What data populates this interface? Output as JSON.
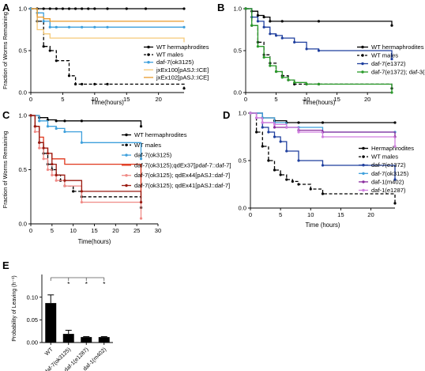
{
  "figure": "multi-panel survival and leaving probability figure",
  "chart_data": [
    {
      "panel": "A",
      "type": "line",
      "xlabel": "Time(hours)",
      "ylabel": "Fraction of Worms Remaining",
      "xlim": [
        0,
        24
      ],
      "ylim": [
        0,
        1.0
      ],
      "xticks": [
        0,
        5,
        10,
        15,
        20
      ],
      "yticks": [
        0,
        0.5,
        1.0
      ],
      "ytick_labels": [
        "0.0",
        "0.5",
        "1.0"
      ],
      "legend_position": "right",
      "series": [
        {
          "name": "WT hermaphrodites",
          "color": "#000000",
          "dash": "solid",
          "marker": "dot",
          "x": [
            0,
            1,
            2,
            3,
            4,
            5,
            6,
            7,
            8,
            9,
            10,
            12,
            15,
            18,
            24
          ],
          "y": [
            1,
            1,
            1,
            1,
            1,
            1,
            1,
            1,
            1,
            1,
            1,
            1,
            1,
            1,
            1
          ]
        },
        {
          "name": "WT males",
          "color": "#000000",
          "dash": "dashed",
          "marker": "dot",
          "x": [
            0,
            1,
            2,
            3,
            4,
            6,
            7,
            8,
            10,
            12,
            24
          ],
          "y": [
            1,
            0.85,
            0.55,
            0.5,
            0.38,
            0.2,
            0.1,
            0.1,
            0.1,
            0.1,
            0.05
          ]
        },
        {
          "name": "daf-7(ok3125)",
          "color": "#3ea0dc",
          "dash": "solid",
          "marker": "dot",
          "x": [
            0,
            1,
            2,
            3,
            4,
            6,
            8,
            10,
            12,
            24
          ],
          "y": [
            1,
            0.95,
            0.85,
            0.78,
            0.78,
            0.78,
            0.78,
            0.78,
            0.78,
            0.78
          ]
        },
        {
          "name": "jxEx100[pASJ::ICE]",
          "color": "#f5c978",
          "dash": "solid",
          "marker": "none",
          "x": [
            0,
            1,
            2,
            3,
            6,
            8,
            12,
            24
          ],
          "y": [
            1,
            0.75,
            0.7,
            0.65,
            0.65,
            0.65,
            0.65,
            0.6
          ]
        },
        {
          "name": "jxEx102[pASJ::ICE]",
          "color": "#e99a2c",
          "dash": "solid",
          "marker": "none",
          "x": [
            0,
            1,
            2,
            3,
            6,
            12,
            24
          ],
          "y": [
            1,
            0.9,
            0.88,
            0.85,
            0.85,
            0.85,
            0.85
          ]
        }
      ]
    },
    {
      "panel": "B",
      "type": "line",
      "xlabel": "Time(hours)",
      "ylabel": "",
      "xlim": [
        0,
        24
      ],
      "ylim": [
        0,
        1.0
      ],
      "xticks": [
        0,
        5,
        10,
        15,
        20
      ],
      "yticks": [
        0,
        0.5,
        1.0
      ],
      "ytick_labels": [
        "0.0",
        "0.5",
        "1.0"
      ],
      "legend_position": "right",
      "series": [
        {
          "name": "WT hermaphrodites",
          "color": "#000000",
          "dash": "solid",
          "marker": "dot",
          "x": [
            0,
            1,
            2,
            3,
            4,
            6,
            12,
            24
          ],
          "y": [
            1,
            0.97,
            0.92,
            0.9,
            0.85,
            0.85,
            0.85,
            0.8
          ]
        },
        {
          "name": "WT males",
          "color": "#000000",
          "dash": "dashed",
          "marker": "dot",
          "x": [
            0,
            1,
            2,
            3,
            4,
            5,
            6,
            7,
            8,
            10,
            12,
            24
          ],
          "y": [
            1,
            0.8,
            0.6,
            0.45,
            0.35,
            0.25,
            0.2,
            0.15,
            0.1,
            0.1,
            0.1,
            0.05
          ]
        },
        {
          "name": "daf-7(e1372)",
          "color": "#1f3f9e",
          "dash": "solid",
          "marker": "dot",
          "x": [
            0,
            1,
            2,
            3,
            4,
            5,
            6,
            8,
            10,
            12,
            24
          ],
          "y": [
            1,
            0.9,
            0.85,
            0.78,
            0.7,
            0.68,
            0.65,
            0.6,
            0.52,
            0.5,
            0.4
          ]
        },
        {
          "name": "daf-7(e1372); daf-3(e1376)",
          "color": "#2a9a2a",
          "dash": "solid",
          "marker": "dot",
          "x": [
            0,
            1,
            2,
            3,
            4,
            5,
            6,
            7,
            8,
            10,
            12,
            24
          ],
          "y": [
            1,
            0.8,
            0.55,
            0.42,
            0.32,
            0.25,
            0.18,
            0.15,
            0.12,
            0.1,
            0.1,
            0.0
          ]
        }
      ]
    },
    {
      "panel": "C",
      "type": "line",
      "xlabel": "Time(hours)",
      "ylabel": "Fraction of Worms Remaining",
      "xlim": [
        0,
        30
      ],
      "ylim": [
        0,
        1.0
      ],
      "xticks": [
        0,
        5,
        10,
        15,
        20,
        25,
        30
      ],
      "yticks": [
        0,
        0.5,
        1.0
      ],
      "ytick_labels": [
        "0.0",
        "0.5",
        "1.0"
      ],
      "legend_position": "right",
      "series": [
        {
          "name": "WT hermaphrodites",
          "color": "#000000",
          "dash": "solid",
          "marker": "dot",
          "x": [
            0,
            2,
            4,
            6,
            8,
            12,
            26
          ],
          "y": [
            1,
            0.98,
            0.96,
            0.95,
            0.95,
            0.95,
            0.9
          ]
        },
        {
          "name": "WT males",
          "color": "#000000",
          "dash": "dashed",
          "marker": "dot",
          "x": [
            0,
            1,
            2,
            3,
            4,
            5,
            6,
            7,
            8,
            10,
            12,
            26
          ],
          "y": [
            1,
            0.9,
            0.75,
            0.65,
            0.55,
            0.5,
            0.45,
            0.4,
            0.35,
            0.3,
            0.25,
            0.15
          ]
        },
        {
          "name": "daf-7(ok3125)",
          "color": "#3ea0dc",
          "dash": "solid",
          "marker": "dot",
          "x": [
            0,
            2,
            4,
            6,
            8,
            12,
            26
          ],
          "y": [
            1,
            0.95,
            0.9,
            0.88,
            0.85,
            0.75,
            0.6
          ]
        },
        {
          "name": "daf-7(ok3125);qdEx37[pdaf-7::daf-7]",
          "color": "#e0371c",
          "dash": "solid",
          "marker": "none",
          "x": [
            0,
            1,
            2,
            3,
            4,
            5,
            6,
            8,
            12,
            26
          ],
          "y": [
            1,
            0.9,
            0.8,
            0.7,
            0.65,
            0.6,
            0.6,
            0.55,
            0.55,
            0.25
          ]
        },
        {
          "name": "daf-7(ok3125); qdEx44[pASJ::daf-7]",
          "color": "#f08a86",
          "dash": "solid",
          "marker": "dot",
          "x": [
            0,
            1,
            2,
            3,
            4,
            5,
            6,
            8,
            12,
            26
          ],
          "y": [
            1,
            0.85,
            0.7,
            0.6,
            0.5,
            0.45,
            0.4,
            0.35,
            0.2,
            0.05
          ]
        },
        {
          "name": "daf-7(ok3125); qdEx41[pASJ::daf-7]",
          "color": "#9a1a10",
          "dash": "solid",
          "marker": "dot",
          "x": [
            0,
            1,
            2,
            3,
            4,
            5,
            6,
            8,
            12,
            26
          ],
          "y": [
            1,
            0.9,
            0.75,
            0.7,
            0.65,
            0.55,
            0.45,
            0.4,
            0.3,
            0.2
          ]
        }
      ]
    },
    {
      "panel": "D",
      "type": "line",
      "xlabel": "Time (hours)",
      "ylabel": "",
      "xlim": [
        0,
        24
      ],
      "ylim": [
        0,
        1.0
      ],
      "xticks": [
        0,
        5,
        10,
        15,
        20
      ],
      "yticks": [
        0,
        0.5,
        1.0
      ],
      "ytick_labels": [
        "0.0",
        "0.5",
        "1.0"
      ],
      "legend_position": "right",
      "series": [
        {
          "name": "Hermaphrodites",
          "color": "#000000",
          "dash": "solid",
          "marker": "dot",
          "x": [
            0,
            2,
            4,
            6,
            8,
            12,
            24
          ],
          "y": [
            1,
            0.95,
            0.92,
            0.9,
            0.9,
            0.9,
            0.9
          ]
        },
        {
          "name": "WT males",
          "color": "#000000",
          "dash": "dashed",
          "marker": "dot",
          "x": [
            0,
            1,
            2,
            3,
            4,
            5,
            6,
            7,
            8,
            10,
            12,
            24
          ],
          "y": [
            1,
            0.8,
            0.65,
            0.5,
            0.4,
            0.35,
            0.3,
            0.28,
            0.25,
            0.2,
            0.15,
            0.05
          ]
        },
        {
          "name": "daf-7(e1372)",
          "color": "#1f3f9e",
          "dash": "solid",
          "marker": "dot",
          "x": [
            0,
            2,
            3,
            4,
            5,
            6,
            8,
            12,
            24
          ],
          "y": [
            1,
            0.85,
            0.8,
            0.75,
            0.7,
            0.6,
            0.5,
            0.45,
            0.3
          ]
        },
        {
          "name": "daf-7(ok3125)",
          "color": "#3ea0dc",
          "dash": "solid",
          "marker": "dot",
          "x": [
            0,
            2,
            4,
            6,
            8,
            12,
            24
          ],
          "y": [
            1,
            0.95,
            0.9,
            0.85,
            0.85,
            0.8,
            0.8
          ]
        },
        {
          "name": "daf-1(m402)",
          "color": "#8a2c9e",
          "dash": "solid",
          "marker": "dot",
          "x": [
            0,
            1,
            2,
            4,
            6,
            8,
            12,
            24
          ],
          "y": [
            1,
            0.95,
            0.9,
            0.85,
            0.85,
            0.82,
            0.8,
            0.75
          ]
        },
        {
          "name": "daf-1(e1287)",
          "color": "#d07fe0",
          "dash": "solid",
          "marker": "dot",
          "x": [
            0,
            1,
            2,
            4,
            6,
            8,
            12,
            24
          ],
          "y": [
            1,
            0.95,
            0.9,
            0.88,
            0.85,
            0.8,
            0.75,
            0.65
          ]
        }
      ]
    },
    {
      "panel": "E",
      "type": "bar",
      "ylabel": "Probability of Leaving (h⁻¹)",
      "ylim": [
        0,
        0.15
      ],
      "yticks": [
        0,
        0.05,
        0.1
      ],
      "ytick_labels": [
        "0.00",
        "0.05",
        "0.10"
      ],
      "categories": [
        "WT",
        "daf-7(ok3125)",
        "daf-1(e1287)",
        "daf-1(m402)"
      ],
      "values": [
        0.087,
        0.019,
        0.012,
        0.012
      ],
      "errors": [
        0.018,
        0.008,
        0.001,
        0.001
      ],
      "bar_color": "#000000",
      "significance": {
        "from": "WT",
        "marks": [
          "*",
          "*",
          "*"
        ]
      }
    }
  ]
}
